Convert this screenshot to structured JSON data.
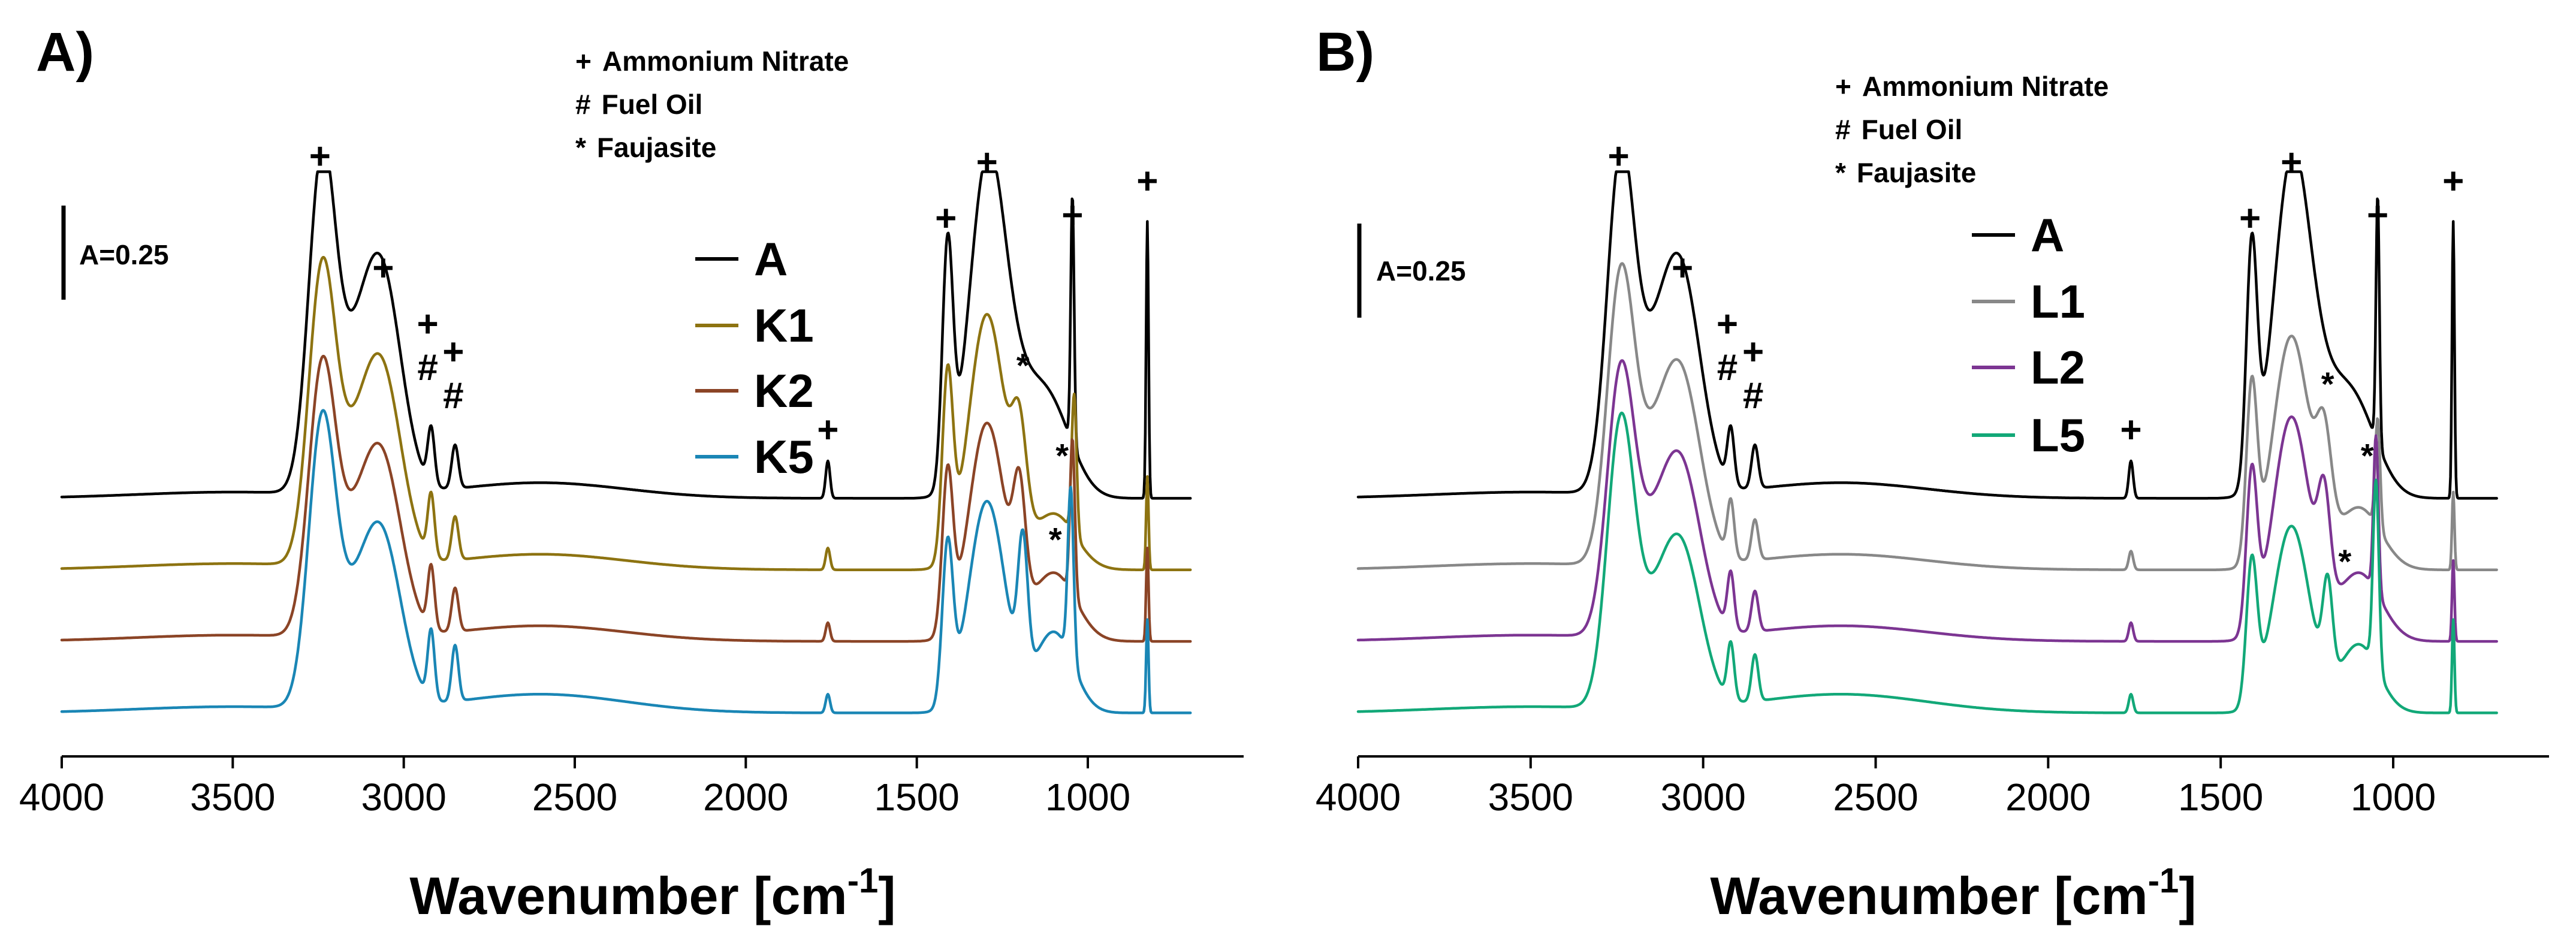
{
  "colors": {
    "A": "#000000",
    "K1": "#8d7311",
    "K2": "#8b4426",
    "K5": "#1a86b5",
    "L1": "#888888",
    "L2": "#7c3592",
    "L5": "#12a878"
  },
  "chart_data": [
    {
      "type": "line",
      "panel_label": "A)",
      "xlabel": "Wavenumber [cm",
      "xlabel_sup": "-1",
      "xlabel_tail": "]",
      "ylabel": "",
      "xlim": [
        4000,
        700
      ],
      "x_reversed": true,
      "xticks": [
        4000,
        3500,
        3000,
        2500,
        2000,
        1500,
        1000
      ],
      "xtick_labels": [
        "4000",
        "3500",
        "3000",
        "2500",
        "2000",
        "1500",
        "1000"
      ],
      "scale_bar": "A=0.25",
      "legend_position": "upper-middle",
      "key": [
        {
          "symbol": "+",
          "text": "Ammonium Nitrate"
        },
        {
          "symbol": "#",
          "text": "Fuel Oil"
        },
        {
          "symbol": "*",
          "text": "Faujasite"
        }
      ],
      "series": [
        {
          "name": "A",
          "color_key": "A",
          "offset": 0.72,
          "baseline": 0.0,
          "peaks": [
            [
              3240,
              0.99,
              55
            ],
            [
              3060,
              0.62,
              80
            ],
            [
              3150,
              0.35,
              90
            ],
            [
              2920,
              0.18,
              14
            ],
            [
              2850,
              0.14,
              14
            ],
            [
              2600,
              0.05,
              350
            ],
            [
              1760,
              0.12,
              9
            ],
            [
              1410,
              0.75,
              22
            ],
            [
              1295,
              0.98,
              75
            ],
            [
              1200,
              0.28,
              110
            ],
            [
              1100,
              0.2,
              90
            ],
            [
              1045,
              0.8,
              7
            ],
            [
              826,
              0.89,
              5
            ]
          ]
        },
        {
          "name": "K1",
          "color_key": "K1",
          "offset": 0.49,
          "baseline": 0.0,
          "peaks": [
            [
              3240,
              0.87,
              55
            ],
            [
              3060,
              0.55,
              80
            ],
            [
              3150,
              0.3,
              90
            ],
            [
              2920,
              0.2,
              14
            ],
            [
              2850,
              0.14,
              14
            ],
            [
              2600,
              0.05,
              350
            ],
            [
              1760,
              0.07,
              9
            ],
            [
              1410,
              0.58,
              22
            ],
            [
              1295,
              0.82,
              75
            ],
            [
              1200,
              0.32,
              30
            ],
            [
              1100,
              0.18,
              90
            ],
            [
              1040,
              0.45,
              10
            ],
            [
              826,
              0.3,
              5
            ]
          ]
        },
        {
          "name": "K2",
          "color_key": "K2",
          "offset": 0.26,
          "baseline": 0.0,
          "peaks": [
            [
              3240,
              0.79,
              55
            ],
            [
              3060,
              0.5,
              80
            ],
            [
              3150,
              0.28,
              90
            ],
            [
              2920,
              0.2,
              14
            ],
            [
              2850,
              0.14,
              14
            ],
            [
              2600,
              0.05,
              350
            ],
            [
              1760,
              0.06,
              9
            ],
            [
              1410,
              0.5,
              22
            ],
            [
              1295,
              0.7,
              75
            ],
            [
              1200,
              0.35,
              25
            ],
            [
              1100,
              0.22,
              90
            ],
            [
              1045,
              0.5,
              10
            ],
            [
              826,
              0.3,
              5
            ]
          ]
        },
        {
          "name": "K5",
          "color_key": "K5",
          "offset": 0.0,
          "baseline": 0.03,
          "peaks": [
            [
              3240,
              0.85,
              55
            ],
            [
              3060,
              0.48,
              80
            ],
            [
              3150,
              0.27,
              90
            ],
            [
              2920,
              0.22,
              14
            ],
            [
              2850,
              0.18,
              14
            ],
            [
              2600,
              0.06,
              350
            ],
            [
              1760,
              0.06,
              9
            ],
            [
              1410,
              0.5,
              22
            ],
            [
              1295,
              0.68,
              75
            ],
            [
              1190,
              0.42,
              20
            ],
            [
              1100,
              0.26,
              80
            ],
            [
              1050,
              0.55,
              12
            ],
            [
              826,
              0.3,
              5
            ]
          ]
        }
      ],
      "peak_labels": [
        {
          "symbol": "+",
          "x": 3245,
          "y": 1.78
        },
        {
          "symbol": "+",
          "x": 3060,
          "y": 1.42
        },
        {
          "symbol": "+",
          "x": 2930,
          "y": 1.24
        },
        {
          "symbol": "#",
          "x": 2930,
          "y": 1.1
        },
        {
          "symbol": "+",
          "x": 2855,
          "y": 1.15
        },
        {
          "symbol": "#",
          "x": 2855,
          "y": 1.01
        },
        {
          "symbol": "+",
          "x": 1415,
          "y": 1.58
        },
        {
          "symbol": "+",
          "x": 1295,
          "y": 1.76
        },
        {
          "symbol": "*",
          "x": 1190,
          "y": 1.11
        },
        {
          "symbol": "+",
          "x": 1760,
          "y": 0.9
        },
        {
          "symbol": "+",
          "x": 1045,
          "y": 1.59
        },
        {
          "symbol": "*",
          "x": 1075,
          "y": 0.82
        },
        {
          "symbol": "+",
          "x": 826,
          "y": 1.7
        },
        {
          "symbol": "*",
          "x": 1095,
          "y": 0.55
        }
      ]
    },
    {
      "type": "line",
      "panel_label": "B)",
      "xlabel": "Wavenumber [cm",
      "xlabel_sup": "-1",
      "xlabel_tail": "]",
      "ylabel": "",
      "xlim": [
        4000,
        700
      ],
      "x_reversed": true,
      "xticks": [
        4000,
        3500,
        3000,
        2500,
        2000,
        1500,
        1000
      ],
      "xtick_labels": [
        "4000",
        "3500",
        "3000",
        "2500",
        "2000",
        "1500",
        "1000"
      ],
      "scale_bar": "A=0.25",
      "legend_position": "upper-middle",
      "key": [
        {
          "symbol": "+",
          "text": "Ammonium Nitrate"
        },
        {
          "symbol": "#",
          "text": "Fuel Oil"
        },
        {
          "symbol": "*",
          "text": "Faujasite"
        }
      ],
      "series": [
        {
          "name": "A",
          "color_key": "A",
          "offset": 0.72,
          "baseline": 0.0,
          "peaks": [
            [
              3240,
              0.99,
              55
            ],
            [
              3060,
              0.62,
              80
            ],
            [
              3150,
              0.35,
              90
            ],
            [
              2920,
              0.18,
              14
            ],
            [
              2850,
              0.14,
              14
            ],
            [
              2600,
              0.05,
              350
            ],
            [
              1760,
              0.12,
              9
            ],
            [
              1410,
              0.75,
              22
            ],
            [
              1295,
              0.98,
              75
            ],
            [
              1200,
              0.28,
              110
            ],
            [
              1100,
              0.2,
              90
            ],
            [
              1045,
              0.8,
              7
            ],
            [
              826,
              0.89,
              5
            ]
          ]
        },
        {
          "name": "L1",
          "color_key": "L1",
          "offset": 0.49,
          "baseline": 0.0,
          "peaks": [
            [
              3240,
              0.85,
              55
            ],
            [
              3060,
              0.53,
              80
            ],
            [
              3150,
              0.3,
              90
            ],
            [
              2920,
              0.18,
              14
            ],
            [
              2850,
              0.13,
              14
            ],
            [
              2600,
              0.05,
              350
            ],
            [
              1760,
              0.06,
              9
            ],
            [
              1410,
              0.55,
              22
            ],
            [
              1295,
              0.75,
              75
            ],
            [
              1200,
              0.3,
              30
            ],
            [
              1100,
              0.2,
              90
            ],
            [
              1045,
              0.35,
              10
            ],
            [
              826,
              0.25,
              5
            ]
          ]
        },
        {
          "name": "L2",
          "color_key": "L2",
          "offset": 0.26,
          "baseline": 0.0,
          "peaks": [
            [
              3240,
              0.78,
              55
            ],
            [
              3060,
              0.48,
              80
            ],
            [
              3150,
              0.27,
              90
            ],
            [
              2920,
              0.18,
              14
            ],
            [
              2850,
              0.13,
              14
            ],
            [
              2600,
              0.05,
              350
            ],
            [
              1760,
              0.06,
              9
            ],
            [
              1410,
              0.5,
              22
            ],
            [
              1295,
              0.72,
              75
            ],
            [
              1200,
              0.32,
              25
            ],
            [
              1100,
              0.22,
              90
            ],
            [
              1050,
              0.5,
              10
            ],
            [
              826,
              0.26,
              5
            ]
          ]
        },
        {
          "name": "L5",
          "color_key": "L5",
          "offset": 0.0,
          "baseline": 0.03,
          "peaks": [
            [
              3240,
              0.85,
              55
            ],
            [
              3060,
              0.45,
              80
            ],
            [
              3150,
              0.25,
              90
            ],
            [
              2920,
              0.18,
              14
            ],
            [
              2850,
              0.15,
              14
            ],
            [
              2600,
              0.06,
              350
            ],
            [
              1760,
              0.06,
              9
            ],
            [
              1410,
              0.45,
              22
            ],
            [
              1295,
              0.6,
              75
            ],
            [
              1190,
              0.3,
              20
            ],
            [
              1100,
              0.22,
              80
            ],
            [
              1050,
              0.6,
              12
            ],
            [
              826,
              0.3,
              5
            ]
          ]
        }
      ],
      "peak_labels": [
        {
          "symbol": "+",
          "x": 3245,
          "y": 1.78
        },
        {
          "symbol": "+",
          "x": 3060,
          "y": 1.42
        },
        {
          "symbol": "+",
          "x": 2930,
          "y": 1.24
        },
        {
          "symbol": "#",
          "x": 2930,
          "y": 1.1
        },
        {
          "symbol": "+",
          "x": 2855,
          "y": 1.15
        },
        {
          "symbol": "#",
          "x": 2855,
          "y": 1.01
        },
        {
          "symbol": "+",
          "x": 1415,
          "y": 1.58
        },
        {
          "symbol": "+",
          "x": 1295,
          "y": 1.76
        },
        {
          "symbol": "*",
          "x": 1190,
          "y": 1.05
        },
        {
          "symbol": "+",
          "x": 1760,
          "y": 0.9
        },
        {
          "symbol": "+",
          "x": 1045,
          "y": 1.59
        },
        {
          "symbol": "*",
          "x": 1075,
          "y": 0.82
        },
        {
          "symbol": "+",
          "x": 826,
          "y": 1.7
        },
        {
          "symbol": "*",
          "x": 1140,
          "y": 0.48
        }
      ]
    }
  ]
}
